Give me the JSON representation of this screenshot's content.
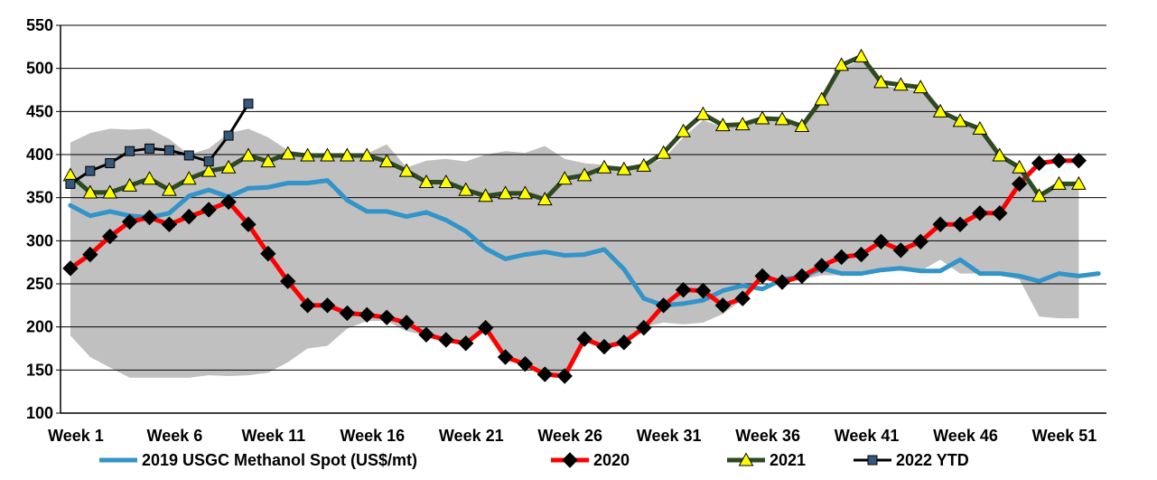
{
  "chart_data": {
    "type": "line",
    "title": "",
    "xlabel": "",
    "ylabel": "",
    "ylim": [
      100,
      550
    ],
    "y_ticks": [
      100,
      150,
      200,
      250,
      300,
      350,
      400,
      450,
      500,
      550
    ],
    "x_range": [
      1,
      52
    ],
    "x_tick_labels": [
      {
        "week": 1,
        "label": "Week 1"
      },
      {
        "week": 6,
        "label": "Week 6"
      },
      {
        "week": 11,
        "label": "Week 11"
      },
      {
        "week": 16,
        "label": "Week 16"
      },
      {
        "week": 21,
        "label": "Week 21"
      },
      {
        "week": 26,
        "label": "Week 26"
      },
      {
        "week": 31,
        "label": "Week 31"
      },
      {
        "week": 36,
        "label": "Week 36"
      },
      {
        "week": 41,
        "label": "Week 41"
      },
      {
        "week": 46,
        "label": "Week 46"
      },
      {
        "week": 51,
        "label": "Week 51"
      }
    ],
    "grid": true,
    "legend_position": "bottom",
    "colors": {
      "band": "#c0c0c0",
      "series_2019": "#3294c8",
      "series_2020_line": "#ff0000",
      "series_2020_marker": "#000000",
      "series_2021_line": "#2e4a20",
      "series_2021_marker": "#ffff00",
      "series_2022_line": "#000000",
      "series_2022_marker": "#34597a"
    },
    "band": {
      "upper": [
        [
          1,
          414
        ],
        [
          2,
          425
        ],
        [
          3,
          430
        ],
        [
          4,
          429
        ],
        [
          5,
          430
        ],
        [
          6,
          418
        ],
        [
          7,
          400
        ],
        [
          8,
          407
        ],
        [
          9,
          425
        ],
        [
          10,
          430
        ],
        [
          11,
          420
        ],
        [
          12,
          405
        ],
        [
          13,
          401
        ],
        [
          14,
          401
        ],
        [
          15,
          399
        ],
        [
          16,
          401
        ],
        [
          17,
          412
        ],
        [
          18,
          385
        ],
        [
          19,
          393
        ],
        [
          20,
          395
        ],
        [
          21,
          392
        ],
        [
          22,
          400
        ],
        [
          23,
          404
        ],
        [
          24,
          402
        ],
        [
          25,
          410
        ],
        [
          26,
          395
        ],
        [
          27,
          390
        ],
        [
          28,
          388
        ],
        [
          29,
          383
        ],
        [
          30,
          388
        ],
        [
          31,
          395
        ],
        [
          32,
          420
        ],
        [
          33,
          440
        ],
        [
          34,
          432
        ],
        [
          35,
          434
        ],
        [
          36,
          440
        ],
        [
          37,
          440
        ],
        [
          38,
          430
        ],
        [
          39,
          460
        ],
        [
          40,
          500
        ],
        [
          41,
          510
        ],
        [
          42,
          480
        ],
        [
          43,
          477
        ],
        [
          44,
          474
        ],
        [
          45,
          446
        ],
        [
          46,
          436
        ],
        [
          47,
          428
        ],
        [
          48,
          398
        ],
        [
          49,
          382
        ],
        [
          50,
          352
        ],
        [
          51,
          365
        ],
        [
          52,
          365
        ]
      ],
      "lower": [
        [
          1,
          190
        ],
        [
          2,
          165
        ],
        [
          3,
          153
        ],
        [
          4,
          141
        ],
        [
          5,
          141
        ],
        [
          6,
          141
        ],
        [
          7,
          141
        ],
        [
          8,
          144
        ],
        [
          9,
          143
        ],
        [
          10,
          144
        ],
        [
          11,
          147
        ],
        [
          12,
          159
        ],
        [
          13,
          175
        ],
        [
          14,
          178
        ],
        [
          15,
          198
        ],
        [
          16,
          207
        ],
        [
          17,
          207
        ],
        [
          18,
          195
        ],
        [
          19,
          190
        ],
        [
          20,
          184
        ],
        [
          21,
          182
        ],
        [
          22,
          197
        ],
        [
          23,
          162
        ],
        [
          24,
          156
        ],
        [
          25,
          146
        ],
        [
          26,
          143
        ],
        [
          27,
          185
        ],
        [
          28,
          178
        ],
        [
          29,
          183
        ],
        [
          30,
          200
        ],
        [
          31,
          205
        ],
        [
          32,
          203
        ],
        [
          33,
          205
        ],
        [
          34,
          215
        ],
        [
          35,
          232
        ],
        [
          36,
          255
        ],
        [
          37,
          250
        ],
        [
          38,
          255
        ],
        [
          39,
          260
        ],
        [
          40,
          260
        ],
        [
          41,
          265
        ],
        [
          42,
          268
        ],
        [
          43,
          265
        ],
        [
          44,
          265
        ],
        [
          45,
          278
        ],
        [
          46,
          262
        ],
        [
          47,
          262
        ],
        [
          48,
          260
        ],
        [
          49,
          255
        ],
        [
          50,
          212
        ],
        [
          51,
          210
        ],
        [
          52,
          210
        ]
      ]
    },
    "series": [
      {
        "name": "2019 USGC Methanol Spot (US$/mt)",
        "points": [
          [
            1,
            341
          ],
          [
            2,
            329
          ],
          [
            3,
            334
          ],
          [
            4,
            329
          ],
          [
            5,
            327
          ],
          [
            6,
            332
          ],
          [
            7,
            352
          ],
          [
            8,
            359
          ],
          [
            9,
            351
          ],
          [
            10,
            361
          ],
          [
            11,
            362
          ],
          [
            12,
            367
          ],
          [
            13,
            367
          ],
          [
            14,
            370
          ],
          [
            15,
            347
          ],
          [
            16,
            334
          ],
          [
            17,
            334
          ],
          [
            18,
            328
          ],
          [
            19,
            333
          ],
          [
            20,
            324
          ],
          [
            21,
            311
          ],
          [
            22,
            291
          ],
          [
            23,
            279
          ],
          [
            24,
            284
          ],
          [
            25,
            287
          ],
          [
            26,
            283
          ],
          [
            27,
            284
          ],
          [
            28,
            290
          ],
          [
            29,
            267
          ],
          [
            30,
            233
          ],
          [
            31,
            225
          ],
          [
            32,
            227
          ],
          [
            33,
            231
          ],
          [
            34,
            242
          ],
          [
            35,
            248
          ],
          [
            36,
            244
          ],
          [
            37,
            255
          ],
          [
            38,
            258
          ],
          [
            39,
            268
          ],
          [
            40,
            262
          ],
          [
            41,
            262
          ],
          [
            42,
            266
          ],
          [
            43,
            268
          ],
          [
            44,
            265
          ],
          [
            45,
            265
          ],
          [
            46,
            278
          ],
          [
            47,
            262
          ],
          [
            48,
            262
          ],
          [
            49,
            259
          ],
          [
            50,
            253
          ],
          [
            51,
            262
          ],
          [
            52,
            259
          ],
          [
            53,
            262
          ]
        ]
      },
      {
        "name": "2020",
        "points": [
          [
            1,
            268
          ],
          [
            2,
            284
          ],
          [
            3,
            305
          ],
          [
            4,
            322
          ],
          [
            5,
            327
          ],
          [
            6,
            319
          ],
          [
            7,
            328
          ],
          [
            8,
            336
          ],
          [
            9,
            345
          ],
          [
            10,
            319
          ],
          [
            11,
            285
          ],
          [
            12,
            253
          ],
          [
            13,
            225
          ],
          [
            14,
            225
          ],
          [
            15,
            216
          ],
          [
            16,
            214
          ],
          [
            17,
            211
          ],
          [
            18,
            205
          ],
          [
            19,
            191
          ],
          [
            20,
            185
          ],
          [
            21,
            181
          ],
          [
            22,
            199
          ],
          [
            23,
            165
          ],
          [
            24,
            157
          ],
          [
            25,
            145
          ],
          [
            26,
            143
          ],
          [
            27,
            186
          ],
          [
            28,
            177
          ],
          [
            29,
            182
          ],
          [
            30,
            199
          ],
          [
            31,
            225
          ],
          [
            32,
            243
          ],
          [
            33,
            242
          ],
          [
            34,
            225
          ],
          [
            35,
            233
          ],
          [
            36,
            259
          ],
          [
            37,
            252
          ],
          [
            38,
            259
          ],
          [
            39,
            271
          ],
          [
            40,
            281
          ],
          [
            41,
            284
          ],
          [
            42,
            299
          ],
          [
            43,
            289
          ],
          [
            44,
            299
          ],
          [
            45,
            319
          ],
          [
            46,
            319
          ],
          [
            47,
            332
          ],
          [
            48,
            332
          ],
          [
            49,
            366
          ],
          [
            50,
            390
          ],
          [
            51,
            393
          ],
          [
            52,
            393
          ]
        ]
      },
      {
        "name": "2021",
        "points": [
          [
            1,
            376
          ],
          [
            2,
            356
          ],
          [
            3,
            356
          ],
          [
            4,
            364
          ],
          [
            5,
            372
          ],
          [
            6,
            359
          ],
          [
            7,
            372
          ],
          [
            8,
            381
          ],
          [
            9,
            385
          ],
          [
            10,
            399
          ],
          [
            11,
            392
          ],
          [
            12,
            401
          ],
          [
            13,
            399
          ],
          [
            14,
            399
          ],
          [
            15,
            399
          ],
          [
            16,
            399
          ],
          [
            17,
            392
          ],
          [
            18,
            381
          ],
          [
            19,
            368
          ],
          [
            20,
            368
          ],
          [
            21,
            359
          ],
          [
            22,
            352
          ],
          [
            23,
            355
          ],
          [
            24,
            355
          ],
          [
            25,
            348
          ],
          [
            26,
            372
          ],
          [
            27,
            376
          ],
          [
            28,
            385
          ],
          [
            29,
            383
          ],
          [
            30,
            387
          ],
          [
            31,
            402
          ],
          [
            32,
            427
          ],
          [
            33,
            447
          ],
          [
            34,
            434
          ],
          [
            35,
            435
          ],
          [
            36,
            442
          ],
          [
            37,
            441
          ],
          [
            38,
            433
          ],
          [
            39,
            464
          ],
          [
            40,
            504
          ],
          [
            41,
            514
          ],
          [
            42,
            484
          ],
          [
            43,
            481
          ],
          [
            44,
            478
          ],
          [
            45,
            450
          ],
          [
            46,
            439
          ],
          [
            47,
            430
          ],
          [
            48,
            399
          ],
          [
            49,
            385
          ],
          [
            50,
            352
          ],
          [
            51,
            366
          ],
          [
            52,
            366
          ]
        ]
      },
      {
        "name": "2022 YTD",
        "points": [
          [
            1,
            366
          ],
          [
            2,
            381
          ],
          [
            3,
            390
          ],
          [
            4,
            404
          ],
          [
            5,
            407
          ],
          [
            6,
            405
          ],
          [
            7,
            399
          ],
          [
            8,
            392
          ],
          [
            9,
            422
          ],
          [
            10,
            459
          ]
        ]
      }
    ]
  }
}
